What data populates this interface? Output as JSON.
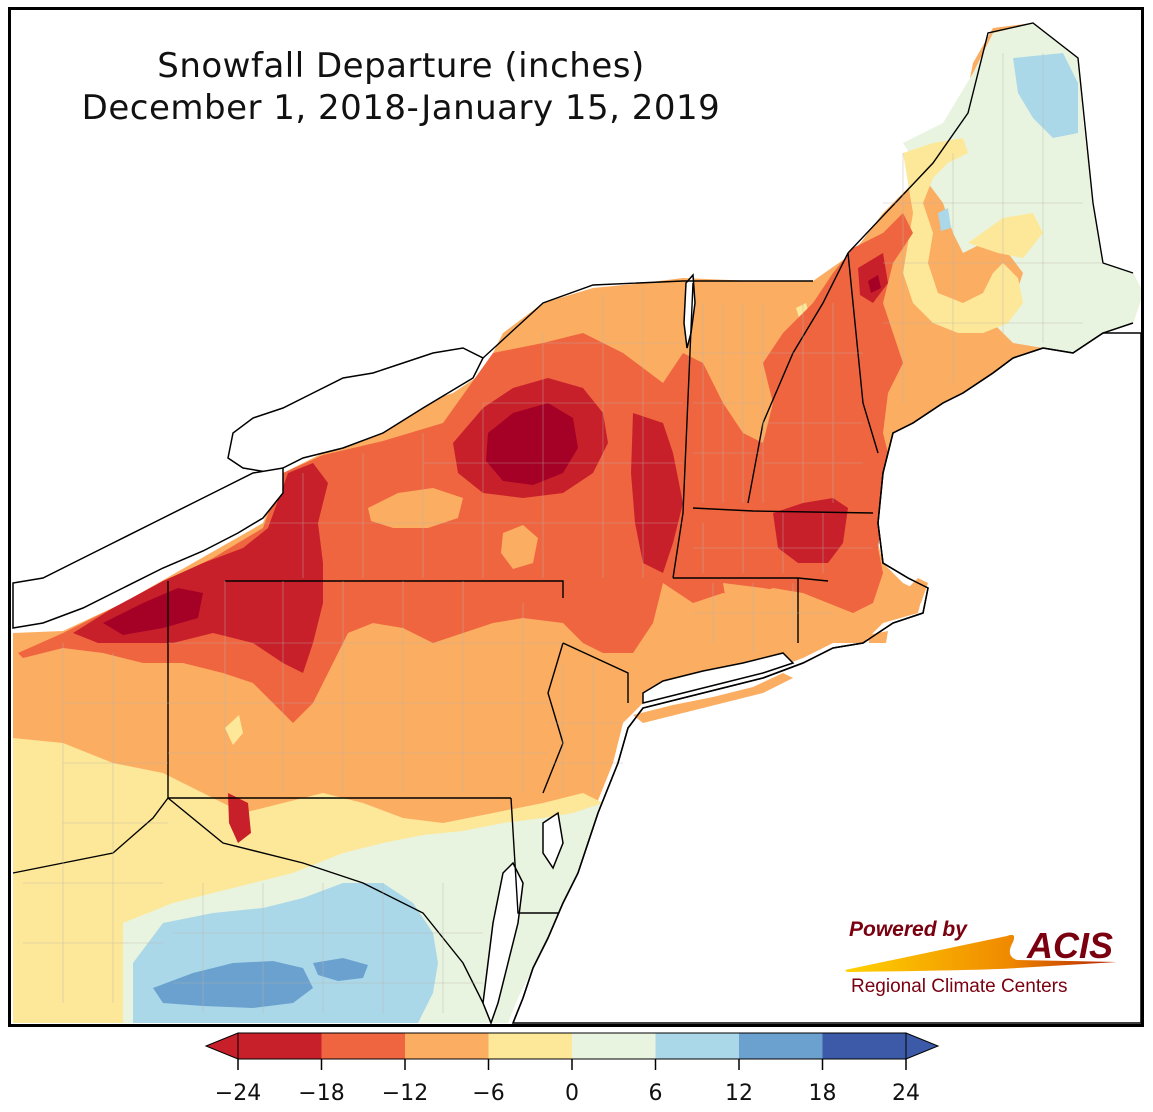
{
  "title": {
    "line1": "Snowfall Departure (inches)",
    "line2": "December 1, 2018-January 15, 2019"
  },
  "logo": {
    "powered_by": "Powered by",
    "name": "ACIS",
    "subtitle": "Regional Climate Centers"
  },
  "legend": {
    "ticks": [
      "−24",
      "−18",
      "−12",
      "−6",
      "0",
      "6",
      "12",
      "18",
      "24"
    ],
    "bins": [
      {
        "range": "-24 to -18",
        "color": "#c8202a"
      },
      {
        "range": "-18 to -12",
        "color": "#ef6540"
      },
      {
        "range": "-12 to -6",
        "color": "#fbad62"
      },
      {
        "range": "-6 to 0",
        "color": "#fde89a"
      },
      {
        "range": "0 to 6",
        "color": "#e8f4df"
      },
      {
        "range": "6 to 12",
        "color": "#abd8e8"
      },
      {
        "range": "12 to 18",
        "color": "#6ba1cf"
      },
      {
        "range": "18 to 24",
        "color": "#3c5aa7"
      }
    ],
    "under_color": "#a50026",
    "over_color": "#313695"
  },
  "colors": {
    "water": "#ffffff",
    "border": "#000000",
    "county": "#b9b2aa",
    "logo_red": "#7a0010"
  }
}
